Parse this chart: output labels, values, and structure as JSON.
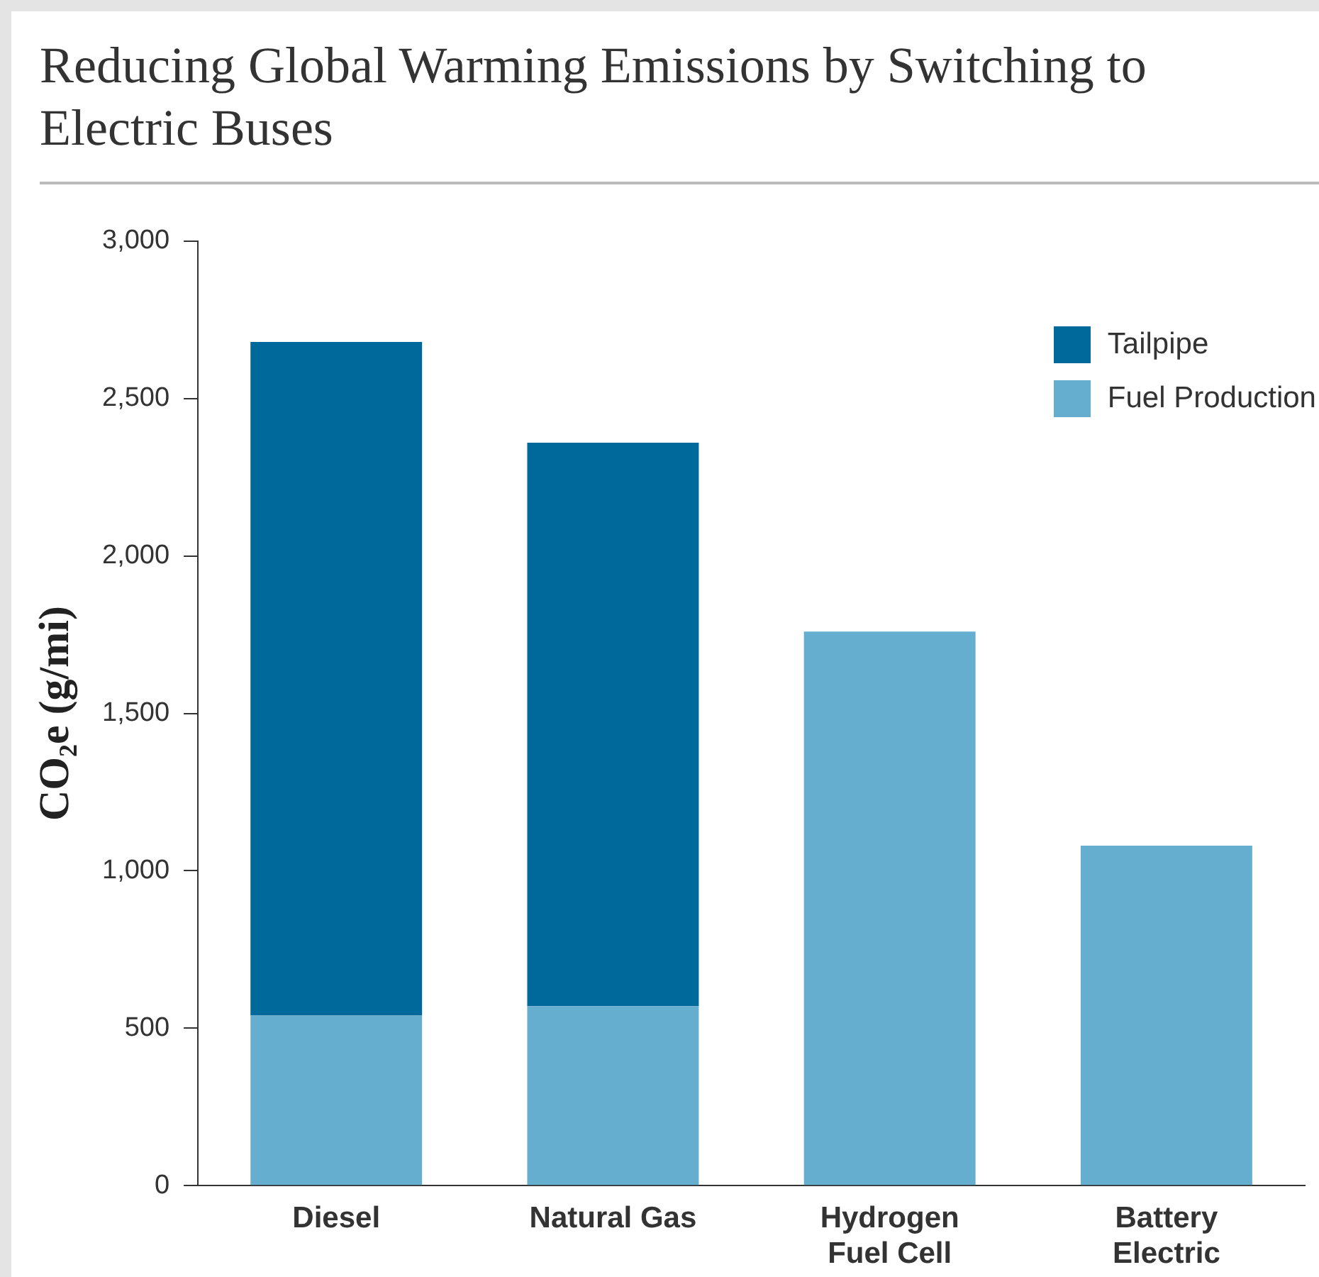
{
  "chart_data": {
    "type": "bar",
    "title": "Reducing Global Warming Emissions by Switching to Electric Buses",
    "ylabel": "CO₂e (g/mi)",
    "categories": [
      "Diesel",
      "Natural Gas",
      "Hydrogen\nFuel Cell",
      "Battery\nElectric"
    ],
    "stacked": true,
    "legend": "top right",
    "series": [
      {
        "name": "Fuel Production",
        "color": "#66aed0",
        "values": [
          540,
          570,
          1760,
          1080
        ]
      },
      {
        "name": "Tailpipe",
        "color": "#00699b",
        "values": [
          2140,
          1790,
          null,
          null
        ]
      }
    ],
    "ylim": [
      0,
      3000
    ],
    "yticks": [
      0,
      {
        "value": 500,
        "label": "500"
      },
      {
        "value": 1000,
        "label": "1,000"
      },
      {
        "value": 1500,
        "label": "1,500"
      },
      {
        "value": 2000,
        "label": "2,000"
      },
      {
        "value": 2500,
        "label": "2,500"
      },
      {
        "value": 3000,
        "label": "3,000"
      }
    ]
  }
}
